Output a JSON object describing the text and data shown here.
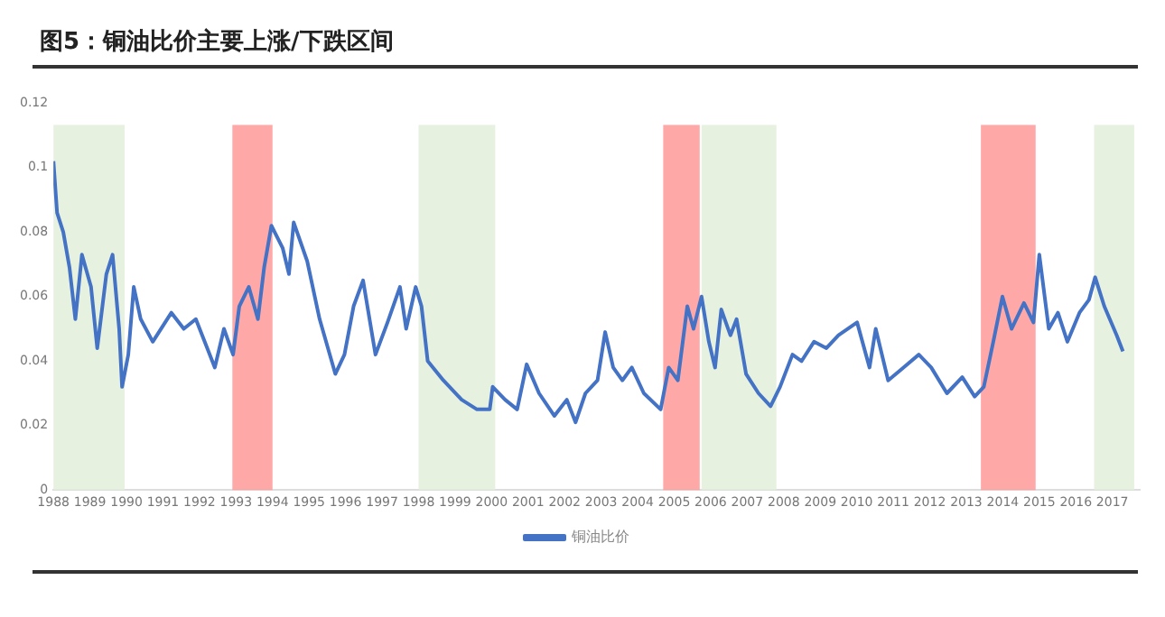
{
  "chart_data": {
    "type": "line",
    "title": "图5：铜油比价主要上涨/下跌区间",
    "xlim": [
      1988,
      2017.75
    ],
    "xticks": [
      1988,
      1989,
      1990,
      1991,
      1992,
      1993,
      1994,
      1995,
      1996,
      1997,
      1998,
      1999,
      2000,
      2001,
      2002,
      2003,
      2004,
      2005,
      2006,
      2007,
      2008,
      2009,
      2010,
      2011,
      2012,
      2013,
      2014,
      2015,
      2016,
      2017
    ],
    "ylim": [
      0,
      0.12
    ],
    "yticks": [
      0,
      0.02,
      0.04,
      0.06,
      0.08,
      0.1,
      0.12
    ],
    "grid": false,
    "legend": "bottom",
    "marker": "none",
    "line_style": "solid",
    "x": [
      1988.0,
      1988.1,
      1988.27,
      1988.44,
      1988.6,
      1988.78,
      1989.03,
      1989.2,
      1989.45,
      1989.62,
      1989.8,
      1989.88,
      1990.05,
      1990.2,
      1990.39,
      1990.72,
      1991.23,
      1991.57,
      1991.9,
      1992.42,
      1992.67,
      1992.92,
      1993.09,
      1993.35,
      1993.6,
      1993.77,
      1993.97,
      1994.28,
      1994.45,
      1994.58,
      1994.95,
      1995.29,
      1995.72,
      1995.97,
      1996.22,
      1996.48,
      1996.82,
      1997.15,
      1997.49,
      1997.66,
      1997.92,
      1998.08,
      1998.25,
      1998.68,
      1999.18,
      1999.6,
      1999.95,
      2000.03,
      2000.37,
      2000.7,
      2000.96,
      2001.3,
      2001.72,
      2002.06,
      2002.3,
      2002.57,
      2002.9,
      2003.11,
      2003.33,
      2003.58,
      2003.84,
      2004.17,
      2004.63,
      2004.85,
      2005.1,
      2005.36,
      2005.53,
      2005.75,
      2005.95,
      2006.12,
      2006.29,
      2006.54,
      2006.71,
      2006.97,
      2007.31,
      2007.64,
      2007.9,
      2008.24,
      2008.49,
      2008.83,
      2009.17,
      2009.5,
      2010.01,
      2010.35,
      2010.52,
      2010.86,
      2011.28,
      2011.7,
      2012.04,
      2012.47,
      2012.89,
      2013.23,
      2013.48,
      2013.74,
      2013.99,
      2014.24,
      2014.58,
      2014.84,
      2015.0,
      2015.26,
      2015.51,
      2015.77,
      2016.1,
      2016.36,
      2016.53,
      2016.78,
      2017.12,
      2017.29
    ],
    "series": [
      {
        "name": "铜油比价",
        "color": "#4472c4",
        "values": [
          0.102,
          0.086,
          0.08,
          0.069,
          0.053,
          0.073,
          0.063,
          0.044,
          0.067,
          0.073,
          0.05,
          0.032,
          0.042,
          0.063,
          0.053,
          0.046,
          0.055,
          0.05,
          0.053,
          0.038,
          0.05,
          0.042,
          0.057,
          0.063,
          0.053,
          0.069,
          0.082,
          0.075,
          0.067,
          0.083,
          0.071,
          0.053,
          0.036,
          0.042,
          0.057,
          0.065,
          0.042,
          0.052,
          0.063,
          0.05,
          0.063,
          0.057,
          0.04,
          0.034,
          0.028,
          0.025,
          0.025,
          0.032,
          0.028,
          0.025,
          0.039,
          0.03,
          0.023,
          0.028,
          0.021,
          0.03,
          0.034,
          0.049,
          0.038,
          0.034,
          0.038,
          0.03,
          0.025,
          0.038,
          0.034,
          0.057,
          0.05,
          0.06,
          0.046,
          0.038,
          0.056,
          0.048,
          0.053,
          0.036,
          0.03,
          0.026,
          0.032,
          0.042,
          0.04,
          0.046,
          0.044,
          0.048,
          0.052,
          0.038,
          0.05,
          0.034,
          0.038,
          0.042,
          0.038,
          0.03,
          0.035,
          0.029,
          0.032,
          0.046,
          0.06,
          0.05,
          0.058,
          0.052,
          0.073,
          0.05,
          0.055,
          0.046,
          0.055,
          0.059,
          0.066,
          0.057,
          0.048,
          0.043
        ]
      }
    ],
    "bands": [
      {
        "axis": "x",
        "from": 1988,
        "to": 1989.95,
        "color": "#e2efda"
      },
      {
        "axis": "x",
        "from": 1992.9,
        "to": 1994,
        "color": "#ff9999"
      },
      {
        "axis": "x",
        "from": 1998,
        "to": 2000.1,
        "color": "#e2efda"
      },
      {
        "axis": "x",
        "from": 2004.7,
        "to": 2005.7,
        "color": "#ff9999"
      },
      {
        "axis": "x",
        "from": 2005.75,
        "to": 2007.8,
        "color": "#e2efda"
      },
      {
        "axis": "x",
        "from": 2013.4,
        "to": 2014.9,
        "color": "#ff9999"
      },
      {
        "axis": "x",
        "from": 2016.5,
        "to": 2017.6,
        "color": "#e2efda"
      }
    ]
  }
}
